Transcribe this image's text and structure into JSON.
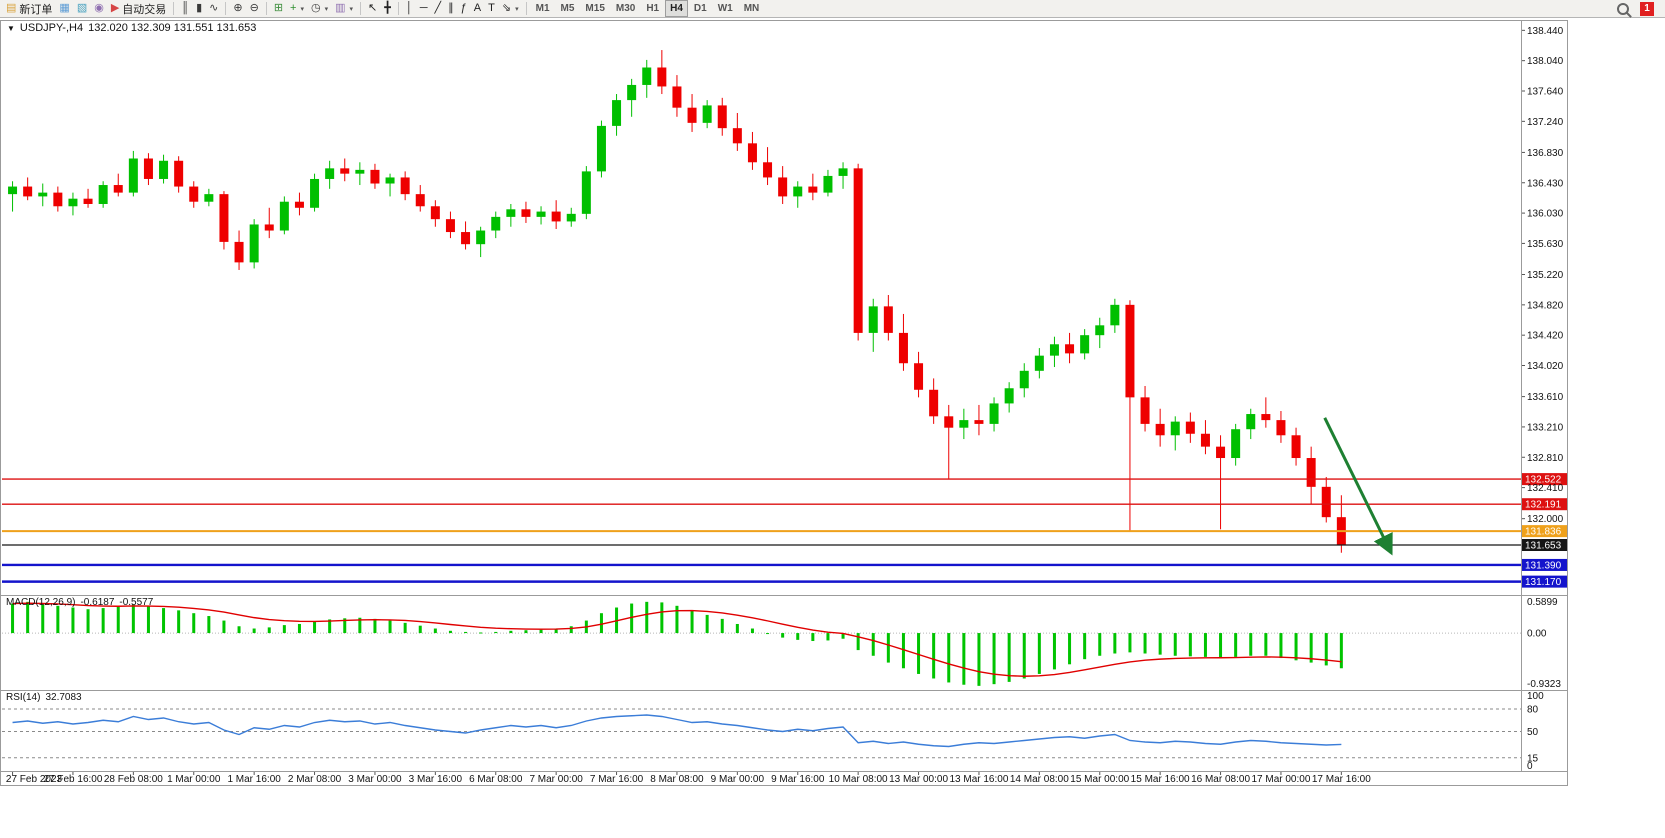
{
  "toolbar": {
    "groups": [
      [
        {
          "name": "new-order",
          "glyph": "▤",
          "color": "#d9a33d",
          "label": "新订单"
        },
        {
          "name": "chart-window",
          "glyph": "▦",
          "color": "#5b9bd5"
        },
        {
          "name": "profiles",
          "glyph": "▧",
          "color": "#4aa3c0"
        },
        {
          "name": "navigator",
          "glyph": "◉",
          "color": "#8f6fb0"
        },
        {
          "name": "auto-trading",
          "glyph": "▶",
          "color": "#d64545",
          "label": "自动交易"
        }
      ],
      [
        {
          "name": "bar-chart-type",
          "glyph": "║",
          "color": "#3a3a3a"
        },
        {
          "name": "candlestick-type",
          "glyph": "▮",
          "color": "#3a3a3a"
        },
        {
          "name": "line-chart-type",
          "glyph": "∿",
          "color": "#3a3a3a"
        }
      ],
      [
        {
          "name": "zoom-in",
          "glyph": "⊕",
          "color": "#3a3a3a"
        },
        {
          "name": "zoom-out",
          "glyph": "⊖",
          "color": "#3a3a3a"
        }
      ],
      [
        {
          "name": "tile-windows",
          "glyph": "⊞",
          "color": "#3f8f3f"
        },
        {
          "name": "indicators",
          "glyph": "+",
          "color": "#2e8f2e",
          "caret": true
        },
        {
          "name": "periods",
          "glyph": "◷",
          "color": "#3a3a3a",
          "caret": true
        },
        {
          "name": "templates",
          "glyph": "▥",
          "color": "#8f6fb0",
          "caret": true
        }
      ],
      [
        {
          "name": "cursor",
          "glyph": "↖",
          "color": "#222"
        },
        {
          "name": "crosshair",
          "glyph": "╋",
          "color": "#222"
        }
      ],
      [
        {
          "name": "vertical-line",
          "glyph": "│",
          "color": "#222"
        },
        {
          "name": "horizontal-line",
          "glyph": "─",
          "color": "#222"
        },
        {
          "name": "trendline",
          "glyph": "╱",
          "color": "#222"
        },
        {
          "name": "equidistant-channel",
          "glyph": "∥",
          "color": "#222"
        },
        {
          "name": "fibonacci",
          "glyph": "ƒ",
          "color": "#222"
        },
        {
          "name": "text",
          "glyph": "A",
          "color": "#222"
        },
        {
          "name": "text-label",
          "glyph": "T",
          "color": "#222"
        },
        {
          "name": "arrows",
          "glyph": "⇘",
          "color": "#222",
          "caret": true
        }
      ]
    ],
    "timeframes": [
      "M1",
      "M5",
      "M15",
      "M30",
      "H1",
      "H4",
      "D1",
      "W1",
      "MN"
    ],
    "active_timeframe": "H4",
    "alert_count": "1"
  },
  "chart": {
    "menu_glyph": "▼",
    "title_symbol": "USDJPY-,H4",
    "title_ohlc": "132.020 132.309 131.551 131.653"
  },
  "chart_data": {
    "type": "candlestick",
    "symbol": "USDJPY-",
    "timeframe": "H4",
    "current_ohlc": {
      "open": "132.020",
      "high": "132.309",
      "low": "131.551",
      "close": "131.653"
    },
    "background": "#ffffff",
    "colors": {
      "bull": "#00bf00",
      "bear": "#ee0000"
    },
    "price_range": {
      "max": 138.55,
      "min": 131.02
    },
    "price_axis_labels": [
      "138.440",
      "138.040",
      "137.640",
      "137.240",
      "136.830",
      "136.430",
      "136.030",
      "135.630",
      "135.220",
      "134.820",
      "134.420",
      "134.020",
      "133.610",
      "133.210",
      "132.810",
      "132.410",
      "132.000"
    ],
    "label_every_n_bars": 4,
    "x_labels": [
      "27 Feb 2023",
      "27 Feb 16:00",
      "28 Feb 08:00",
      "1 Mar 00:00",
      "1 Mar 16:00",
      "2 Mar 08:00",
      "3 Mar 00:00",
      "3 Mar 16:00",
      "6 Mar 08:00",
      "7 Mar 00:00",
      "7 Mar 16:00",
      "8 Mar 08:00",
      "9 Mar 00:00",
      "9 Mar 16:00",
      "10 Mar 08:00",
      "13 Mar 00:00",
      "13 Mar 16:00",
      "14 Mar 08:00",
      "15 Mar 00:00",
      "15 Mar 16:00",
      "16 Mar 08:00",
      "17 Mar 00:00",
      "17 Mar 16:00"
    ],
    "candles": [
      [
        136.28,
        136.45,
        136.05,
        136.38
      ],
      [
        136.38,
        136.5,
        136.2,
        136.25
      ],
      [
        136.25,
        136.42,
        136.12,
        136.3
      ],
      [
        136.3,
        136.38,
        136.05,
        136.12
      ],
      [
        136.12,
        136.3,
        136.0,
        136.22
      ],
      [
        136.22,
        136.35,
        136.1,
        136.15
      ],
      [
        136.15,
        136.45,
        136.1,
        136.4
      ],
      [
        136.4,
        136.55,
        136.25,
        136.3
      ],
      [
        136.3,
        136.85,
        136.25,
        136.75
      ],
      [
        136.75,
        136.82,
        136.4,
        136.48
      ],
      [
        136.48,
        136.8,
        136.42,
        136.72
      ],
      [
        136.72,
        136.78,
        136.3,
        136.38
      ],
      [
        136.38,
        136.45,
        136.1,
        136.18
      ],
      [
        136.18,
        136.35,
        136.12,
        136.28
      ],
      [
        136.28,
        136.32,
        135.55,
        135.65
      ],
      [
        135.65,
        135.8,
        135.28,
        135.38
      ],
      [
        135.38,
        135.95,
        135.3,
        135.88
      ],
      [
        135.88,
        136.1,
        135.7,
        135.8
      ],
      [
        135.8,
        136.25,
        135.75,
        136.18
      ],
      [
        136.18,
        136.3,
        136.0,
        136.1
      ],
      [
        136.1,
        136.55,
        136.05,
        136.48
      ],
      [
        136.48,
        136.72,
        136.35,
        136.62
      ],
      [
        136.62,
        136.75,
        136.45,
        136.55
      ],
      [
        136.55,
        136.7,
        136.4,
        136.6
      ],
      [
        136.6,
        136.68,
        136.35,
        136.42
      ],
      [
        136.42,
        136.55,
        136.25,
        136.5
      ],
      [
        136.5,
        136.58,
        136.2,
        136.28
      ],
      [
        136.28,
        136.4,
        136.05,
        136.12
      ],
      [
        136.12,
        136.2,
        135.85,
        135.95
      ],
      [
        135.95,
        136.05,
        135.7,
        135.78
      ],
      [
        135.78,
        135.92,
        135.55,
        135.62
      ],
      [
        135.62,
        135.85,
        135.45,
        135.8
      ],
      [
        135.8,
        136.05,
        135.7,
        135.98
      ],
      [
        135.98,
        136.15,
        135.85,
        136.08
      ],
      [
        136.08,
        136.18,
        135.9,
        135.98
      ],
      [
        135.98,
        136.12,
        135.88,
        136.05
      ],
      [
        136.05,
        136.2,
        135.82,
        135.92
      ],
      [
        135.92,
        136.1,
        135.85,
        136.02
      ],
      [
        136.02,
        136.65,
        135.95,
        136.58
      ],
      [
        136.58,
        137.25,
        136.5,
        137.18
      ],
      [
        137.18,
        137.6,
        137.05,
        137.52
      ],
      [
        137.52,
        137.8,
        137.3,
        137.72
      ],
      [
        137.72,
        138.05,
        137.55,
        137.95
      ],
      [
        137.95,
        138.18,
        137.6,
        137.7
      ],
      [
        137.7,
        137.85,
        137.3,
        137.42
      ],
      [
        137.42,
        137.6,
        137.1,
        137.22
      ],
      [
        137.22,
        137.52,
        137.15,
        137.45
      ],
      [
        137.45,
        137.55,
        137.05,
        137.15
      ],
      [
        137.15,
        137.35,
        136.85,
        136.95
      ],
      [
        136.95,
        137.1,
        136.6,
        136.7
      ],
      [
        136.7,
        136.9,
        136.4,
        136.5
      ],
      [
        136.5,
        136.65,
        136.15,
        136.25
      ],
      [
        136.25,
        136.45,
        136.1,
        136.38
      ],
      [
        136.38,
        136.55,
        136.2,
        136.3
      ],
      [
        136.3,
        136.6,
        136.25,
        136.52
      ],
      [
        136.52,
        136.7,
        136.35,
        136.62
      ],
      [
        136.62,
        136.68,
        134.35,
        134.45
      ],
      [
        134.45,
        134.9,
        134.2,
        134.8
      ],
      [
        134.8,
        134.95,
        134.35,
        134.45
      ],
      [
        134.45,
        134.7,
        133.95,
        134.05
      ],
      [
        134.05,
        134.2,
        133.6,
        133.7
      ],
      [
        133.7,
        133.85,
        133.25,
        133.35
      ],
      [
        133.35,
        133.5,
        132.52,
        133.2
      ],
      [
        133.2,
        133.45,
        133.05,
        133.3
      ],
      [
        133.3,
        133.5,
        133.1,
        133.25
      ],
      [
        133.25,
        133.6,
        133.15,
        133.52
      ],
      [
        133.52,
        133.8,
        133.4,
        133.72
      ],
      [
        133.72,
        134.05,
        133.6,
        133.95
      ],
      [
        133.95,
        134.25,
        133.85,
        134.15
      ],
      [
        134.15,
        134.4,
        134.0,
        134.3
      ],
      [
        134.3,
        134.45,
        134.05,
        134.18
      ],
      [
        134.18,
        134.5,
        134.1,
        134.42
      ],
      [
        134.42,
        134.65,
        134.25,
        134.55
      ],
      [
        134.55,
        134.9,
        134.45,
        134.82
      ],
      [
        134.82,
        134.88,
        131.84,
        133.6
      ],
      [
        133.6,
        133.75,
        133.15,
        133.25
      ],
      [
        133.25,
        133.45,
        132.95,
        133.1
      ],
      [
        133.1,
        133.35,
        132.9,
        133.28
      ],
      [
        133.28,
        133.4,
        133.0,
        133.12
      ],
      [
        133.12,
        133.3,
        132.85,
        132.95
      ],
      [
        132.95,
        133.1,
        131.86,
        132.8
      ],
      [
        132.8,
        133.25,
        132.7,
        133.18
      ],
      [
        133.18,
        133.45,
        133.05,
        133.38
      ],
      [
        133.38,
        133.6,
        133.2,
        133.3
      ],
      [
        133.3,
        133.42,
        133.0,
        133.1
      ],
      [
        133.1,
        133.2,
        132.7,
        132.8
      ],
      [
        132.8,
        132.95,
        132.19,
        132.42
      ],
      [
        132.42,
        132.55,
        131.95,
        132.02
      ],
      [
        132.02,
        132.309,
        131.551,
        131.653
      ]
    ],
    "hlines": [
      {
        "value": 132.522,
        "label": "132.522",
        "color": "#dd1111",
        "width": 1.4
      },
      {
        "value": 132.191,
        "label": "132.191",
        "color": "#dd1111",
        "width": 1.4
      },
      {
        "value": 131.836,
        "label": "131.836",
        "color": "#efa11b",
        "width": 2
      },
      {
        "value": 131.653,
        "label": "131.653",
        "color": "#161616",
        "width": 1.2
      },
      {
        "value": 131.39,
        "label": "131.390",
        "color": "#1414cc",
        "width": 2.4
      },
      {
        "value": 131.17,
        "label": "131.170",
        "color": "#1414cc",
        "width": 2.4
      }
    ],
    "arrow": {
      "from_bar": 86.9,
      "from_price": 133.33,
      "to_bar": 91.3,
      "to_price": 131.55,
      "color": "#1e8032"
    },
    "macd": {
      "label": "MACD(12,26,9)",
      "value1": "-0.6187",
      "value2": "-0.5577",
      "axis_labels": [
        "0.5899",
        "0.00",
        "-0.9323"
      ],
      "range": {
        "max": 0.6,
        "min": -0.95
      },
      "hist_color": "#00c400",
      "signal_color": "#e00000",
      "values": [
        0.52,
        0.55,
        0.5,
        0.48,
        0.45,
        0.42,
        0.44,
        0.46,
        0.5,
        0.47,
        0.44,
        0.4,
        0.35,
        0.3,
        0.22,
        0.12,
        0.08,
        0.1,
        0.14,
        0.16,
        0.2,
        0.24,
        0.26,
        0.27,
        0.25,
        0.22,
        0.18,
        0.13,
        0.08,
        0.04,
        0.02,
        0.01,
        0.02,
        0.04,
        0.05,
        0.06,
        0.08,
        0.12,
        0.22,
        0.35,
        0.45,
        0.52,
        0.55,
        0.54,
        0.48,
        0.4,
        0.32,
        0.25,
        0.16,
        0.08,
        0.0,
        -0.08,
        -0.12,
        -0.14,
        -0.13,
        -0.1,
        -0.3,
        -0.4,
        -0.52,
        -0.62,
        -0.72,
        -0.8,
        -0.87,
        -0.91,
        -0.93,
        -0.9,
        -0.86,
        -0.8,
        -0.72,
        -0.64,
        -0.55,
        -0.46,
        -0.4,
        -0.36,
        -0.34,
        -0.36,
        -0.38,
        -0.4,
        -0.41,
        -0.42,
        -0.43,
        -0.42,
        -0.4,
        -0.4,
        -0.44,
        -0.48,
        -0.52,
        -0.57,
        -0.62
      ]
    },
    "rsi": {
      "label": "RSI(14)",
      "value": "32.7083",
      "axis_labels": [
        "100",
        "80",
        "50",
        "15",
        "0"
      ],
      "levels": [
        80,
        50,
        15
      ],
      "range": {
        "max": 100,
        "min": 0
      },
      "line_color": "#3b7dd8",
      "values": [
        62,
        64,
        61,
        63,
        60,
        62,
        65,
        63,
        70,
        66,
        68,
        63,
        60,
        62,
        52,
        46,
        55,
        53,
        58,
        56,
        62,
        65,
        63,
        64,
        60,
        62,
        58,
        55,
        52,
        50,
        48,
        52,
        55,
        58,
        56,
        58,
        55,
        58,
        64,
        68,
        70,
        71,
        72,
        70,
        66,
        62,
        63,
        60,
        58,
        55,
        52,
        50,
        53,
        51,
        54,
        56,
        35,
        37,
        34,
        36,
        33,
        31,
        30,
        33,
        35,
        34,
        36,
        38,
        40,
        42,
        43,
        41,
        44,
        46,
        38,
        36,
        35,
        37,
        36,
        34,
        33,
        36,
        38,
        37,
        35,
        34,
        33,
        32,
        32.7
      ]
    }
  }
}
